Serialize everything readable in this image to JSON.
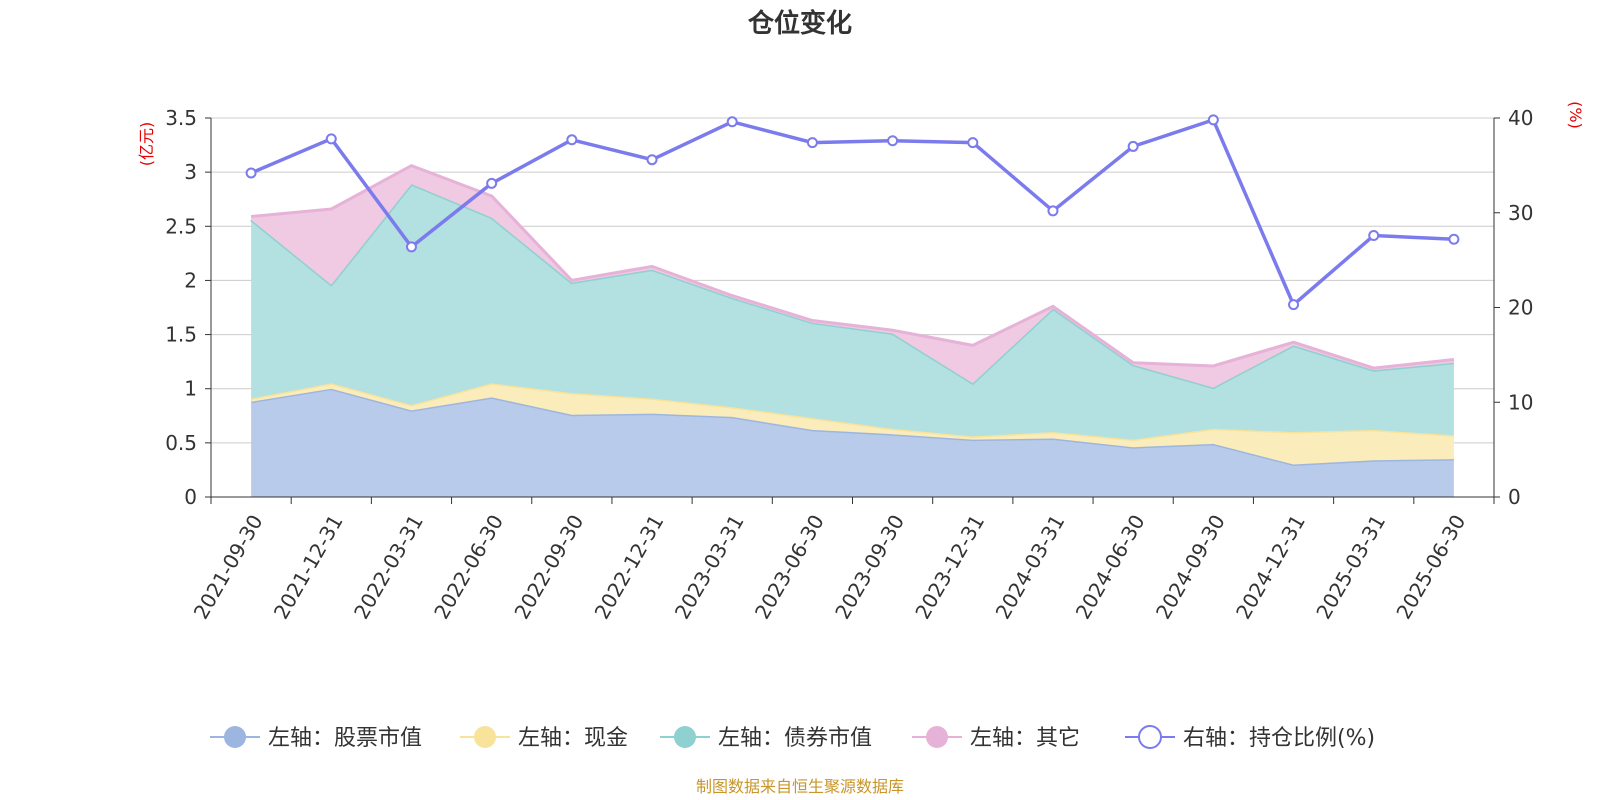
{
  "title": "仓位变化",
  "source": "制图数据来自恒生聚源数据库",
  "left_unit": "(亿元)",
  "right_unit": "(%)",
  "chart_data": {
    "type": "area",
    "stacked": true,
    "categories": [
      "2021-09-30",
      "2021-12-31",
      "2022-03-31",
      "2022-06-30",
      "2022-09-30",
      "2022-12-31",
      "2023-03-31",
      "2023-06-30",
      "2023-09-30",
      "2023-12-31",
      "2024-03-31",
      "2024-06-30",
      "2024-09-30",
      "2024-12-31",
      "2025-03-31",
      "2025-06-30"
    ],
    "left_axis": {
      "min": 0,
      "max": 3.5,
      "ticks": [
        "0",
        "0.5",
        "1",
        "1.5",
        "2",
        "2.5",
        "3",
        "3.5"
      ]
    },
    "right_axis": {
      "min": 0,
      "max": 40,
      "ticks": [
        "0",
        "10",
        "20",
        "30",
        "40"
      ]
    },
    "grid": true,
    "legend_position": "bottom",
    "series": [
      {
        "name": "左轴：股票市值",
        "axis": "left",
        "type": "area",
        "color": "#9db6e0",
        "fill": "#b8cbea",
        "values": [
          0.88,
          1.0,
          0.8,
          0.92,
          0.76,
          0.77,
          0.74,
          0.62,
          0.58,
          0.53,
          0.54,
          0.46,
          0.49,
          0.3,
          0.34,
          0.35
        ]
      },
      {
        "name": "左轴：现金",
        "axis": "left",
        "type": "area",
        "color": "#f8e39a",
        "fill": "#faecbb",
        "values": [
          0.03,
          0.05,
          0.05,
          0.13,
          0.2,
          0.14,
          0.09,
          0.11,
          0.05,
          0.03,
          0.06,
          0.07,
          0.14,
          0.3,
          0.28,
          0.22
        ]
      },
      {
        "name": "左轴：债券市值",
        "axis": "left",
        "type": "area",
        "color": "#8fd0d0",
        "fill": "#b3e0e0",
        "values": [
          1.65,
          0.91,
          2.04,
          1.53,
          1.02,
          1.19,
          1.01,
          0.88,
          0.88,
          0.49,
          1.14,
          0.69,
          0.38,
          0.8,
          0.55,
          0.67
        ]
      },
      {
        "name": "左轴：其它",
        "axis": "left",
        "type": "area",
        "color": "#e6b2d8",
        "fill": "#f0c9e2",
        "values": [
          0.03,
          0.7,
          0.17,
          0.2,
          0.02,
          0.03,
          0.02,
          0.02,
          0.03,
          0.35,
          0.02,
          0.02,
          0.2,
          0.03,
          0.02,
          0.03
        ]
      },
      {
        "name": "右轴：持仓比例(%)",
        "axis": "right",
        "type": "line",
        "color": "#7b7bed",
        "values": [
          34.2,
          37.8,
          26.4,
          33.1,
          37.7,
          35.6,
          39.6,
          37.4,
          37.6,
          37.4,
          30.2,
          37.0,
          39.8,
          20.3,
          27.6,
          27.2
        ]
      }
    ]
  }
}
